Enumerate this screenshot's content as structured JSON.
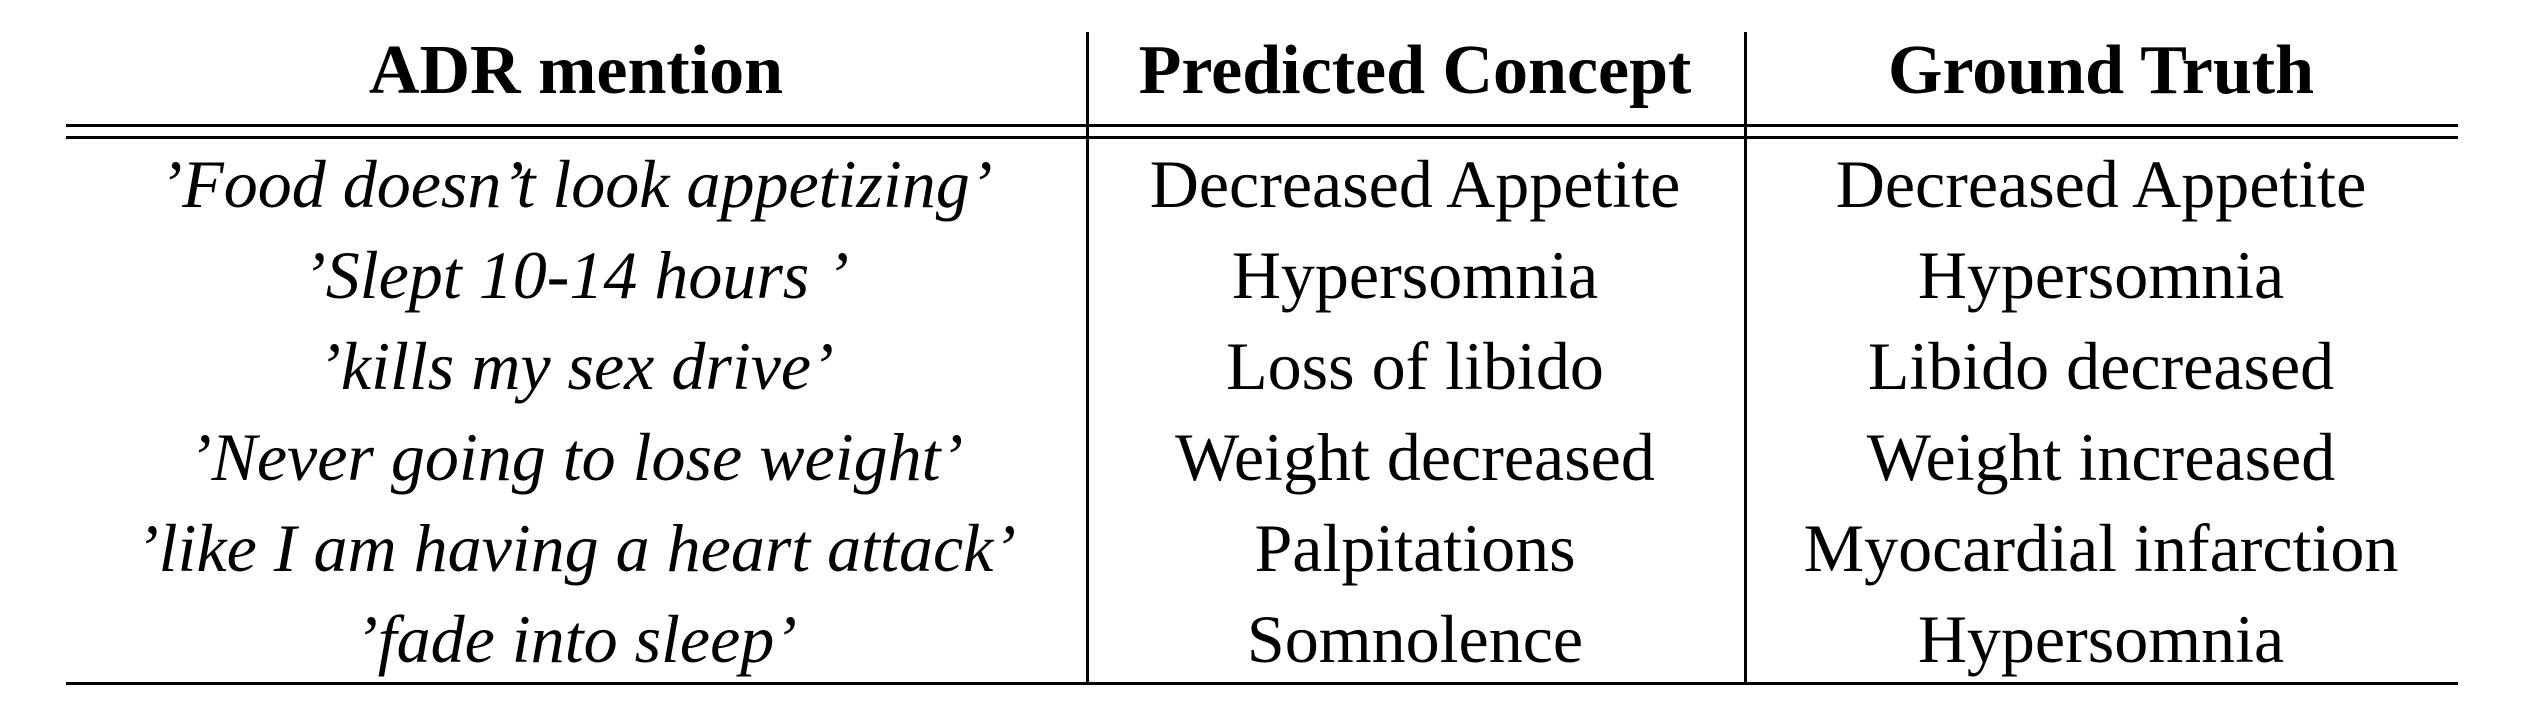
{
  "table": {
    "headers": [
      "ADR mention",
      "Predicted Concept",
      "Ground Truth"
    ],
    "rows": [
      [
        "’Food doesn’t look appetizing’",
        "Decreased Appetite",
        "Decreased Appetite"
      ],
      [
        "’Slept 10-14 hours ’",
        "Hypersomnia",
        "Hypersomnia"
      ],
      [
        "’kills my sex drive’",
        "Loss of libido",
        "Libido decreased"
      ],
      [
        "’Never going to lose weight’",
        "Weight decreased",
        "Weight increased"
      ],
      [
        "’like I am having a heart attack’",
        "Palpitations",
        "Myocardial infarction"
      ],
      [
        "’fade into sleep’",
        "Somnolence",
        "Hypersomnia"
      ]
    ]
  }
}
